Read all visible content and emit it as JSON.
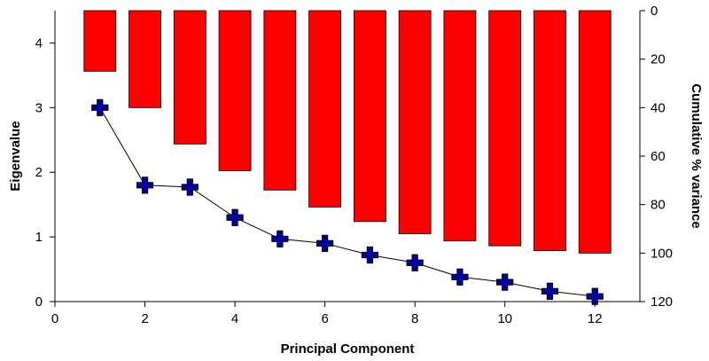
{
  "chart_data": {
    "type": "bar",
    "x": [
      1,
      2,
      3,
      4,
      5,
      6,
      7,
      8,
      9,
      10,
      11,
      12
    ],
    "xlabel": "Principal Component",
    "xlim": [
      0,
      13
    ],
    "xticks": [
      0,
      2,
      4,
      6,
      8,
      10,
      12
    ],
    "series": [
      {
        "type": "bar",
        "axis": "right",
        "values": [
          25,
          40,
          55,
          66,
          74,
          81,
          87,
          92,
          95,
          97,
          99,
          100
        ]
      },
      {
        "type": "line",
        "axis": "left",
        "marker": "plus",
        "values": [
          3.0,
          1.8,
          1.77,
          1.3,
          0.97,
          0.9,
          0.72,
          0.6,
          0.38,
          0.3,
          0.16,
          0.08
        ]
      }
    ],
    "ylabel": "Eigenvalue",
    "ylim": [
      0,
      4.5
    ],
    "yticks": [
      0,
      1,
      2,
      3,
      4
    ],
    "y2label": "Cumulative % variance",
    "y2lim": [
      0,
      120
    ],
    "y2ticks": [
      0,
      20,
      40,
      60,
      80,
      100,
      120
    ],
    "y2_inverted": true,
    "grid": false,
    "colors": {
      "bars": "#ff0000",
      "markers": "#0000aa",
      "line": "#000000"
    }
  }
}
